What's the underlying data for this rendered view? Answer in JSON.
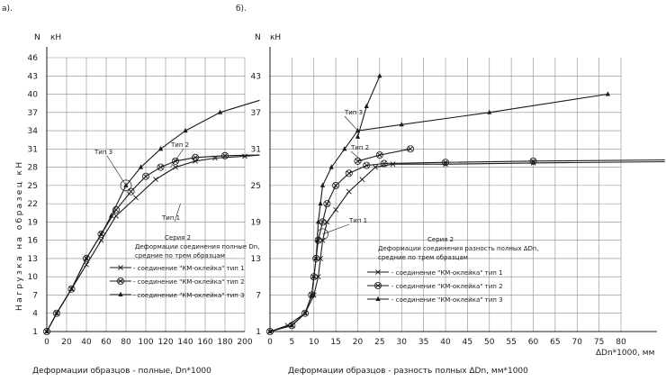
{
  "chart_data": [
    {
      "type": "line",
      "panel_label": "а).",
      "y_axis_symbol": "N",
      "y_unit": "кН",
      "ylabel_vertical": "Нагрузка на образец кН",
      "xlabel": "Деформации образцов - полные, Dn*1000",
      "x_ticks": [
        "0",
        "20",
        "40",
        "60",
        "80",
        "100",
        "120",
        "140",
        "160",
        "180",
        "200"
      ],
      "y_ticks": [
        "1",
        "4",
        "7",
        "10",
        "13",
        "16",
        "19",
        "22",
        "25",
        "28",
        "31",
        "34",
        "37",
        "40",
        "43",
        "46"
      ],
      "xlim": [
        0,
        200
      ],
      "ylim": [
        1,
        46
      ],
      "annotations": [
        "Тип 3",
        "Тип 2",
        "Тип 1"
      ],
      "legend_title": [
        "Серия 2",
        "Деформации соединения полные Dn,",
        "средние по трем образцам"
      ],
      "legend": [
        {
          "label": "- соединение \"КМ-оклейка\" тип 1",
          "marker": "x"
        },
        {
          "label": "- соединение \"КМ-оклейка\" тип 2",
          "marker": "circle-x"
        },
        {
          "label": "- соединение \"КМ-оклейка\" тип 3",
          "marker": "star"
        }
      ],
      "series": [
        {
          "id": "type1",
          "marker": "x",
          "points": [
            [
              0,
              1
            ],
            [
              10,
              4
            ],
            [
              25,
              8
            ],
            [
              40,
              12
            ],
            [
              55,
              16
            ],
            [
              70,
              20
            ],
            [
              90,
              23
            ],
            [
              110,
              26
            ],
            [
              130,
              28
            ],
            [
              150,
              29
            ],
            [
              170,
              29.5
            ],
            [
              200,
              29.8
            ],
            [
              215,
              30
            ]
          ]
        },
        {
          "id": "type2",
          "marker": "circle-x",
          "points": [
            [
              0,
              1
            ],
            [
              10,
              4
            ],
            [
              25,
              8
            ],
            [
              40,
              13
            ],
            [
              55,
              17
            ],
            [
              70,
              21
            ],
            [
              85,
              24
            ],
            [
              100,
              26.5
            ],
            [
              115,
              28
            ],
            [
              130,
              29
            ],
            [
              150,
              29.6
            ],
            [
              180,
              29.9
            ],
            [
              215,
              30
            ]
          ]
        },
        {
          "id": "type3",
          "marker": "star",
          "points": [
            [
              0,
              1
            ],
            [
              10,
              4
            ],
            [
              25,
              8
            ],
            [
              40,
              13
            ],
            [
              55,
              17
            ],
            [
              65,
              20
            ],
            [
              80,
              25
            ],
            [
              95,
              28
            ],
            [
              115,
              31
            ],
            [
              140,
              34
            ],
            [
              175,
              37
            ],
            [
              215,
              39
            ]
          ]
        }
      ]
    },
    {
      "type": "line",
      "panel_label": "б).",
      "y_axis_symbol": "N",
      "y_unit": "кН",
      "xlabel": "Деформации образцов - разность полных ∆Dn, мм*1000",
      "x_axis_end_label": "∆Dn*1000, мм",
      "x_ticks": [
        "0",
        "5",
        "10",
        "15",
        "20",
        "25",
        "30",
        "35",
        "40",
        "45",
        "50",
        "55",
        "60",
        "65",
        "70",
        "75",
        "80"
      ],
      "y_ticks": [
        "1",
        "7",
        "13",
        "19",
        "25",
        "31",
        "37",
        "43"
      ],
      "xlim": [
        0,
        80
      ],
      "ylim": [
        1,
        46
      ],
      "annotations": [
        "Тип 3",
        "Тип 2",
        "Тип 1"
      ],
      "legend_title": [
        "Серия 2",
        "Деформации соединения разность полных ∆Dn,",
        "средние по трем образцам"
      ],
      "legend": [
        {
          "label": "- соединение \"КМ-оклейка\" тип 1",
          "marker": "x"
        },
        {
          "label": "- соединение \"КМ-оклейка\" тип 2",
          "marker": "circle-x"
        },
        {
          "label": "- соединение \"КМ-оклейка\" тип 3",
          "marker": "star"
        }
      ],
      "series": [
        {
          "id": "type1",
          "marker": "x",
          "points": [
            [
              0,
              1
            ],
            [
              4,
              2
            ],
            [
              8,
              4
            ],
            [
              10,
              7
            ],
            [
              11,
              10
            ],
            [
              11.5,
              13
            ],
            [
              12,
              16
            ],
            [
              13,
              19
            ],
            [
              15,
              21
            ],
            [
              18,
              24
            ],
            [
              21,
              26
            ],
            [
              24,
              28
            ],
            [
              28,
              28.5
            ],
            [
              40,
              28.5
            ],
            [
              60,
              28.7
            ],
            [
              90,
              28.9
            ]
          ]
        },
        {
          "id": "type2",
          "marker": "circle-x",
          "points": [
            [
              0,
              1
            ],
            [
              5,
              2
            ],
            [
              8,
              4
            ],
            [
              9.5,
              7
            ],
            [
              10,
              10
            ],
            [
              10.5,
              13
            ],
            [
              11,
              16
            ],
            [
              12,
              19
            ],
            [
              13,
              22
            ],
            [
              15,
              25
            ],
            [
              18,
              27
            ],
            [
              22,
              28.3
            ],
            [
              26,
              28.6
            ],
            [
              40,
              28.8
            ],
            [
              60,
              29
            ],
            [
              90,
              29.2
            ]
          ]
        },
        {
          "id": "type3",
          "marker": "star",
          "points": [
            [
              0,
              1
            ],
            [
              5,
              2
            ],
            [
              8,
              4
            ],
            [
              9.5,
              7
            ],
            [
              10,
              10
            ],
            [
              10.5,
              13
            ],
            [
              10.8,
              16
            ],
            [
              11,
              19
            ],
            [
              11.5,
              22
            ],
            [
              12,
              25
            ],
            [
              14,
              28
            ],
            [
              17,
              31
            ],
            [
              20,
              34
            ],
            [
              30,
              35
            ],
            [
              50,
              37
            ],
            [
              77,
              40
            ]
          ]
        },
        {
          "id": "type2-upper",
          "marker": "circle-x",
          "points": [
            [
              20,
              29
            ],
            [
              25,
              30
            ],
            [
              32,
              31
            ]
          ]
        },
        {
          "id": "type3-upper",
          "marker": "star",
          "points": [
            [
              20,
              33
            ],
            [
              22,
              38
            ],
            [
              25,
              43
            ]
          ]
        }
      ]
    }
  ]
}
